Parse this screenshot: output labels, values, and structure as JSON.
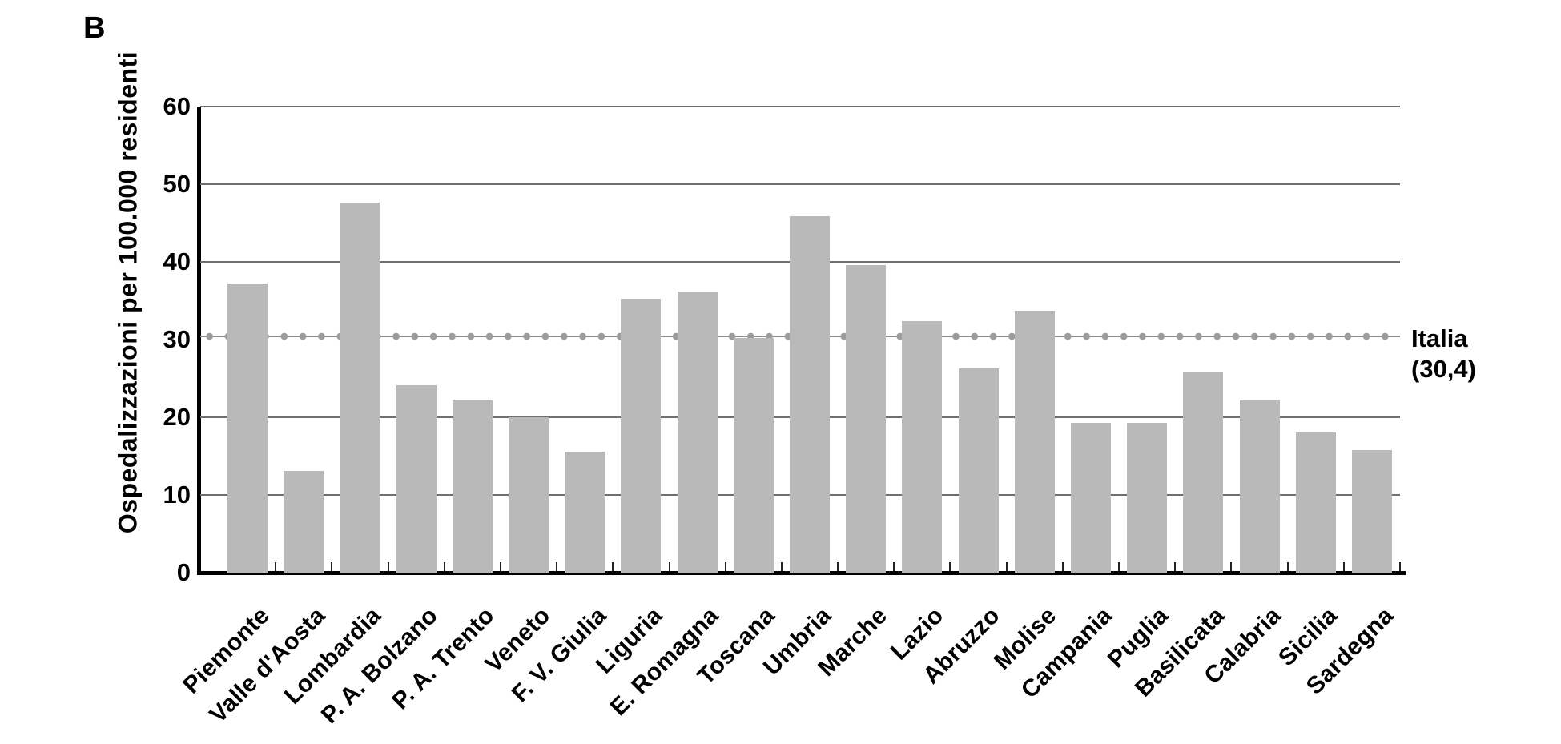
{
  "panel_label": "B",
  "chart_data": {
    "type": "bar",
    "title": "",
    "xlabel": "",
    "ylabel": "Ospedalizzazioni per 100.000 residenti",
    "categories": [
      "Piemonte",
      "Valle d'Aosta",
      "Lombardia",
      "P. A. Bolzano",
      "P. A. Trento",
      "Veneto",
      "F. V. Giulia",
      "Liguria",
      "E. Romagna",
      "Toscana",
      "Umbria",
      "Marche",
      "Lazio",
      "Abruzzo",
      "Molise",
      "Campania",
      "Puglia",
      "Basilicata",
      "Calabria",
      "Sicilia",
      "Sardegna"
    ],
    "values": [
      37.2,
      13.1,
      47.6,
      24.1,
      22.3,
      20.0,
      15.6,
      35.3,
      36.2,
      30.2,
      45.9,
      39.6,
      32.4,
      26.3,
      33.7,
      19.3,
      19.3,
      25.9,
      22.2,
      18.0,
      15.8
    ],
    "ylim": [
      0,
      60
    ],
    "yticks": [
      0,
      10,
      20,
      30,
      40,
      50,
      60
    ],
    "gridline_values": [
      10,
      20,
      40,
      50,
      60
    ],
    "grid": "horizontal",
    "legend": "none",
    "bar_color": "#b9b9b9",
    "gridline_color": "#6f6f6f",
    "axis_color": "#000000",
    "reference_line": {
      "value": 30.4,
      "color": "#9c9c9c",
      "label_line1": "Italia",
      "label_line2": "(30,4)"
    }
  }
}
